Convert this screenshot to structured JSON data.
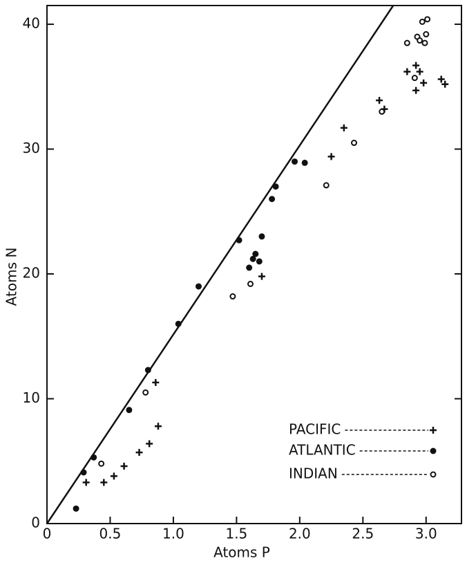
{
  "chart_data": {
    "type": "scatter",
    "x_label": "Atoms P",
    "y_label": "Atoms N",
    "xlim": [
      0,
      3.28
    ],
    "ylim": [
      0,
      41.5
    ],
    "xticks": [
      0,
      0.5,
      {
        "value": 1,
        "label": "1.0"
      },
      1.5,
      {
        "value": 2,
        "label": "2.0"
      },
      2.5,
      {
        "value": 3,
        "label": "3.0"
      }
    ],
    "yticks": [
      0,
      10,
      20,
      30,
      40
    ],
    "reference_line": {
      "x": [
        0,
        2.74
      ],
      "values": [
        0,
        41.5
      ],
      "color": "#111111"
    },
    "series": [
      {
        "name": "PACIFIC",
        "marker": "plus",
        "color": "#111111",
        "x": [
          0.31,
          0.45,
          0.53,
          0.61,
          0.73,
          0.81,
          0.88,
          0.86,
          1.7,
          2.25,
          2.35,
          2.63,
          2.67,
          2.85,
          2.92,
          2.95,
          2.98,
          2.92,
          3.12,
          3.15
        ],
        "values": [
          3.3,
          3.3,
          3.8,
          4.6,
          5.7,
          6.4,
          7.8,
          11.3,
          19.8,
          29.4,
          31.7,
          33.9,
          33.2,
          36.2,
          36.7,
          36.2,
          35.3,
          34.7,
          35.6,
          35.2
        ]
      },
      {
        "name": "ATLANTIC",
        "marker": "filled-circle",
        "color": "#111111",
        "x": [
          0.23,
          0.29,
          0.37,
          0.65,
          0.8,
          1.04,
          1.2,
          1.52,
          1.6,
          1.63,
          1.65,
          1.68,
          1.7,
          1.78,
          1.81,
          1.96,
          2.04
        ],
        "values": [
          1.2,
          4.1,
          5.3,
          9.1,
          12.3,
          16,
          19,
          22.7,
          20.5,
          21.2,
          21.6,
          21,
          23,
          26,
          27,
          29,
          28.9
        ]
      },
      {
        "name": "INDIAN",
        "marker": "open-circle",
        "color": "#111111",
        "x": [
          0.43,
          0.78,
          1.47,
          1.61,
          2.21,
          2.43,
          2.65,
          2.85,
          2.91,
          2.93,
          2.95,
          2.97,
          2.99,
          3.0,
          3.01
        ],
        "values": [
          4.8,
          10.5,
          18.2,
          19.2,
          27.1,
          30.5,
          33,
          38.5,
          35.7,
          39,
          38.7,
          40.2,
          38.5,
          39.2,
          40.4
        ]
      }
    ]
  }
}
